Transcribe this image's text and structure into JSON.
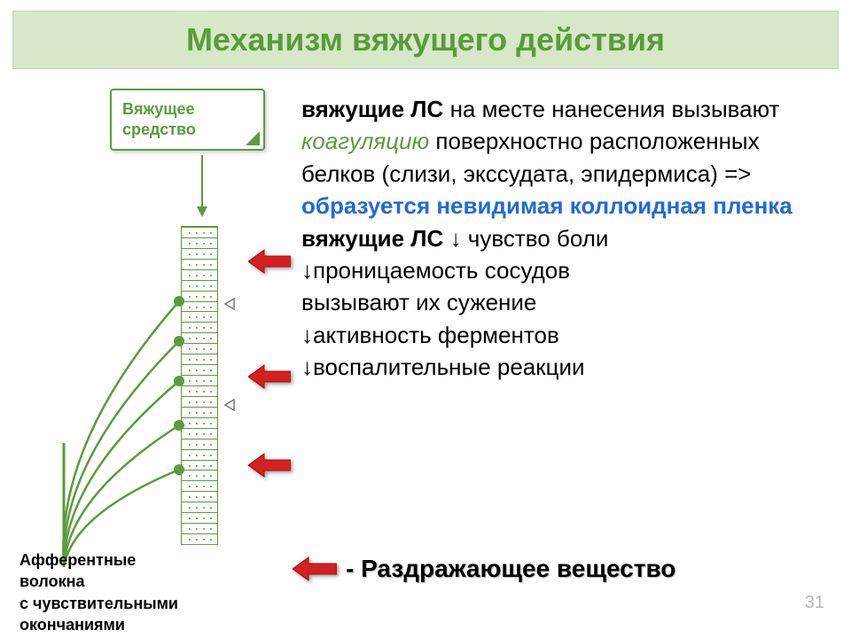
{
  "title": "Механизм вяжущего действия",
  "colors": {
    "title_bg": "#d6e8c8",
    "green": "#5b9b3d",
    "blue": "#226ad4",
    "red": "#d42020",
    "red_dark": "#a01010"
  },
  "label_box": {
    "line1": "Вяжущее",
    "line2": "средство"
  },
  "caption": {
    "line1": "Афферентные",
    "line2": "волокна",
    "line3": "с чувствительными",
    "line4": "окончаниями"
  },
  "body": {
    "p1_a": "вяжущие ЛС",
    "p1_b": " на месте нанесения вызывают ",
    "p1_c": "коагуляцию",
    "p1_d": " поверхностно расположенных белков (слизи, экссудата, эпидермиса) => ",
    "p1_e": "образуется невидимая коллоидная пленка",
    "p2_a": "вяжущие ЛС",
    "p2_b": " ↓ чувство боли",
    "p3": "↓проницаемость сосудов",
    "p4": "вызывают их сужение",
    "p5": "↓активность ферментов",
    "p6": "↓воспалительные реакции"
  },
  "irritant_label": "- Раздражающее вещество",
  "page_number": "31",
  "red_arrows_y": [
    180,
    310,
    410
  ],
  "small_arrows_y": [
    236,
    350
  ],
  "membrane_rows": 30
}
